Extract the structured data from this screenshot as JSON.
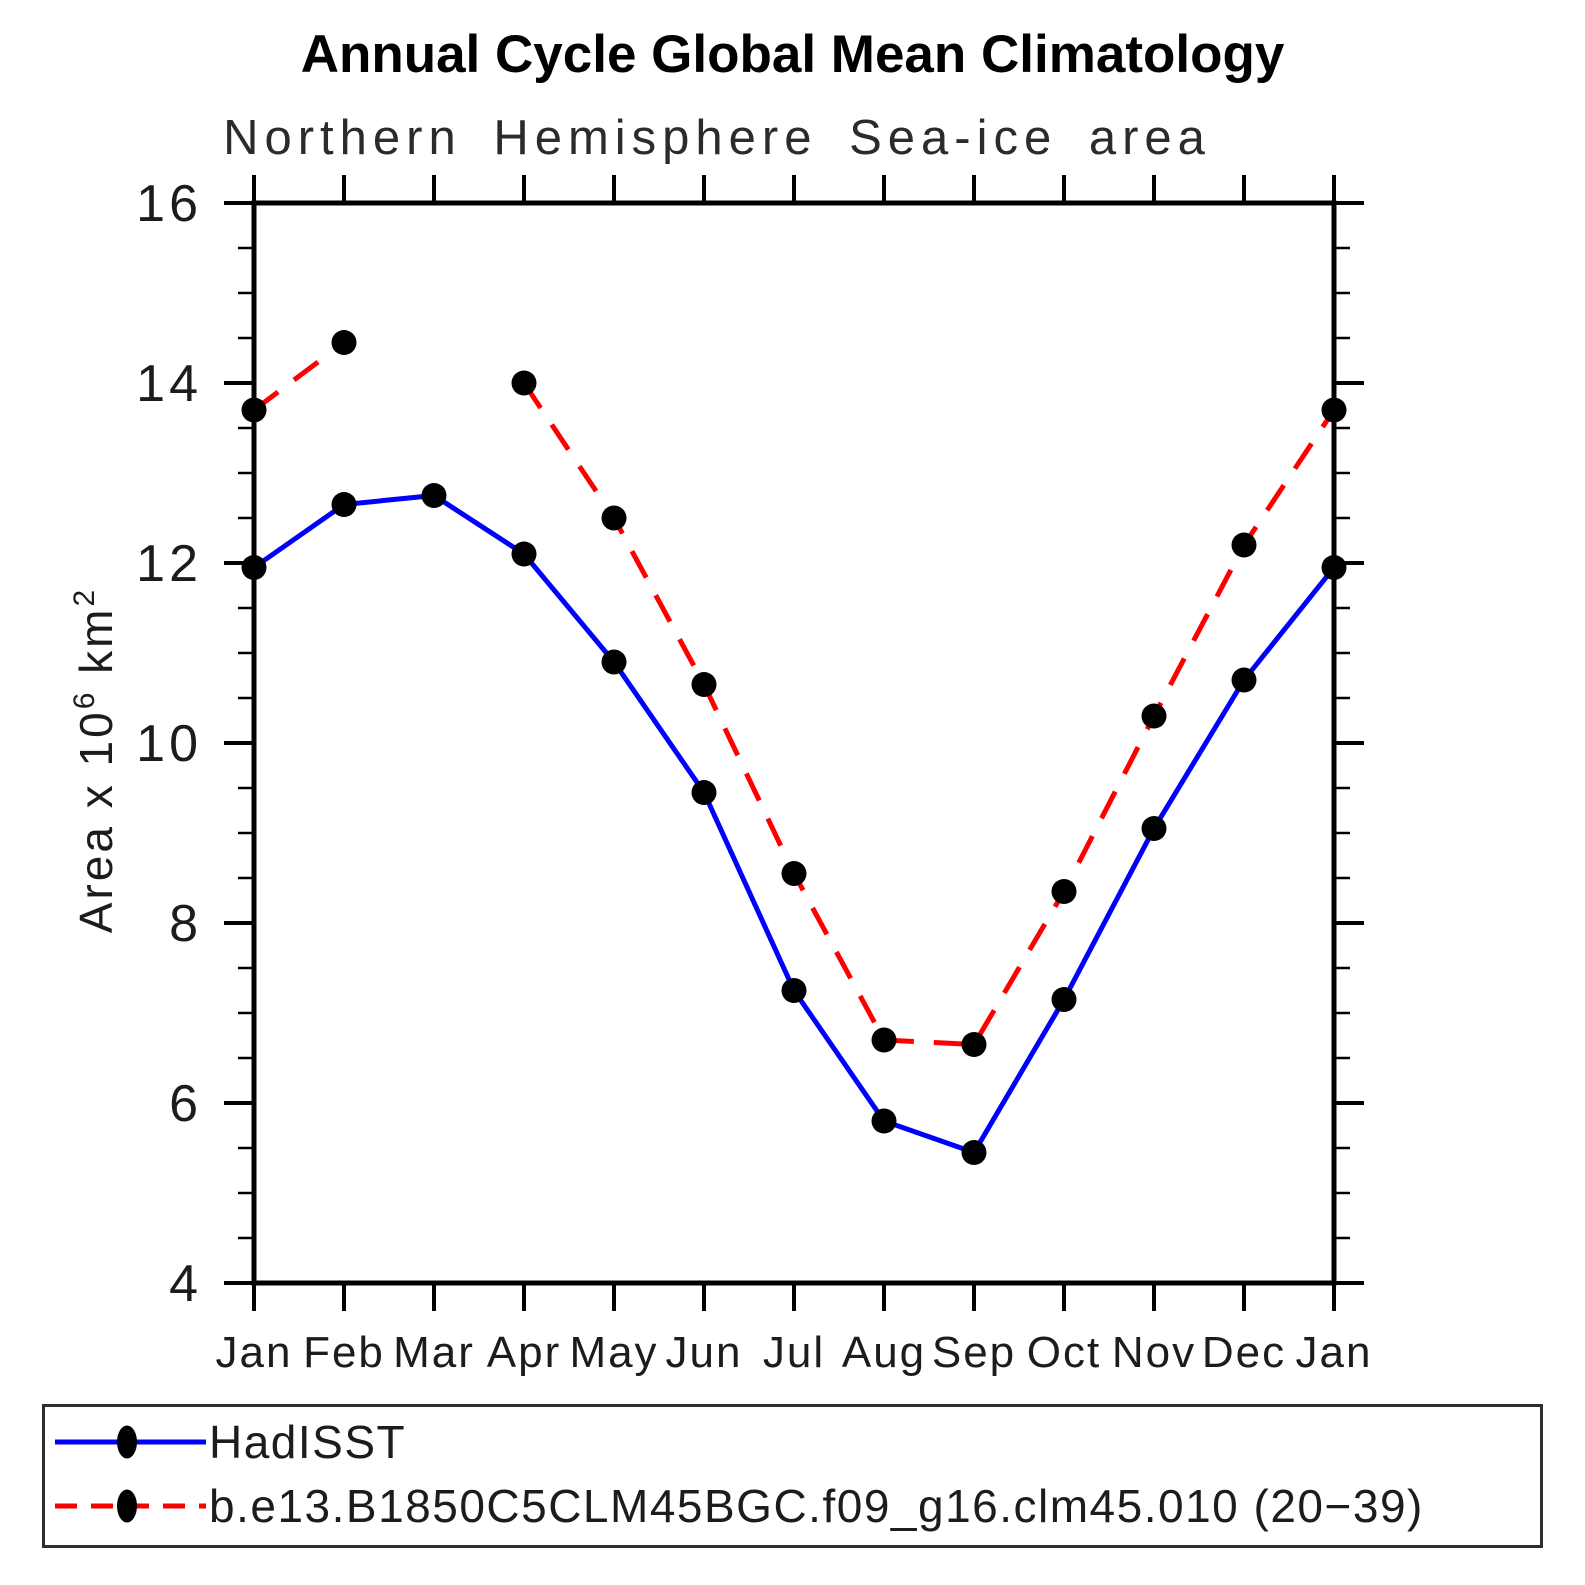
{
  "chart_data": {
    "type": "line",
    "title": "Annual Cycle Global Mean Climatology",
    "subtitle": "Northern Hemisphere Sea-ice area",
    "categories": [
      "Jan",
      "Feb",
      "Mar",
      "Apr",
      "May",
      "Jun",
      "Jul",
      "Aug",
      "Sep",
      "Oct",
      "Nov",
      "Dec",
      "Jan"
    ],
    "series": [
      {
        "name": "HadISST",
        "color": "#0000ff",
        "line_style": "solid",
        "marker": "filled-circle",
        "marker_color": "#000000",
        "values": [
          11.95,
          12.65,
          12.75,
          12.1,
          10.9,
          9.45,
          7.25,
          5.8,
          5.45,
          7.15,
          9.05,
          10.7,
          11.95
        ]
      },
      {
        "name": "b.e13.B1850C5CLM45BGC.f09_g16.clm45.010 (20−39)",
        "color": "#ff0000",
        "line_style": "dashed",
        "marker": "filled-circle",
        "marker_color": "#000000",
        "values": [
          13.7,
          14.45,
          null,
          14.0,
          12.5,
          10.65,
          8.55,
          6.7,
          6.65,
          8.35,
          10.3,
          12.2,
          13.7
        ]
      }
    ],
    "xlabel": "",
    "ylabel": "Area x 10⁶ km²",
    "ylabel_parts": {
      "base1": "Area x 10",
      "sup1": "6",
      "base2": " km",
      "sup2": "2"
    },
    "ylim": [
      4,
      16
    ],
    "yticks_major": [
      4,
      6,
      8,
      10,
      12,
      14,
      16
    ],
    "ytick_labels": [
      "4",
      "6",
      "8",
      "10",
      "12",
      "14",
      "16"
    ],
    "ytick_minor_step": 0.5,
    "grid": "off",
    "axis_color": "#000000",
    "legend_position": "bottom-box"
  }
}
